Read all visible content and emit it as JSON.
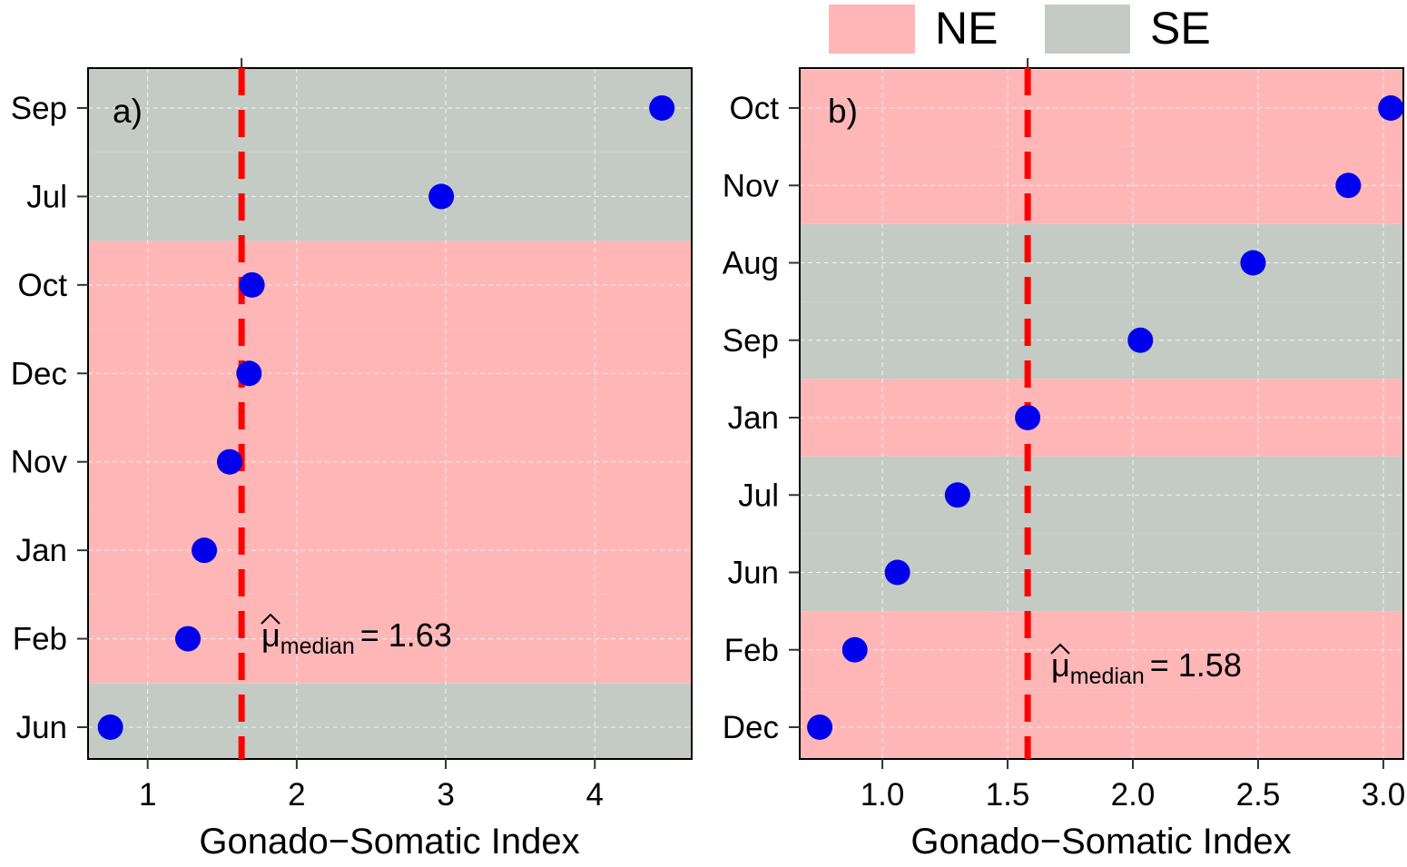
{
  "legend": {
    "items": [
      {
        "label": "NE",
        "color": "#ffb6b7"
      },
      {
        "label": "SE",
        "color": "#c4cbc4"
      }
    ]
  },
  "colors": {
    "point": "#0000ee",
    "median_line": "#ff0000",
    "grid": "#f2f2f2"
  },
  "chart_data": [
    {
      "type": "scatter",
      "panel_label": "a)",
      "xlabel": "Gonado−Somatic Index",
      "xlim": [
        0.6,
        4.65
      ],
      "xticks": [
        1,
        2,
        3,
        4
      ],
      "xtick_labels": [
        "1",
        "2",
        "3",
        "4"
      ],
      "categories": [
        "Jun",
        "Feb",
        "Jan",
        "Nov",
        "Dec",
        "Oct",
        "Jul",
        "Sep"
      ],
      "values": [
        0.75,
        1.27,
        1.38,
        1.55,
        1.68,
        1.7,
        2.97,
        4.45
      ],
      "regions": [
        "SE",
        "NE",
        "NE",
        "NE",
        "NE",
        "NE",
        "SE",
        "SE"
      ],
      "median": 1.63,
      "median_label": {
        "mu": "μ",
        "sub": "median",
        "eq": "= 1.63"
      },
      "grid": true
    },
    {
      "type": "scatter",
      "panel_label": "b)",
      "xlabel": "Gonado−Somatic Index",
      "xlim": [
        0.67,
        3.08
      ],
      "xticks": [
        1.0,
        1.5,
        2.0,
        2.5,
        3.0
      ],
      "xtick_labels": [
        "1.0",
        "1.5",
        "2.0",
        "2.5",
        "3.0"
      ],
      "categories": [
        "Dec",
        "Feb",
        "Jun",
        "Jul",
        "Jan",
        "Sep",
        "Aug",
        "Nov",
        "Oct"
      ],
      "values": [
        0.75,
        0.89,
        1.06,
        1.3,
        1.58,
        2.03,
        2.48,
        2.86,
        3.03
      ],
      "regions": [
        "NE",
        "NE",
        "SE",
        "SE",
        "NE",
        "SE",
        "SE",
        "NE",
        "NE"
      ],
      "median": 1.58,
      "median_label": {
        "mu": "μ",
        "sub": "median",
        "eq": "= 1.58"
      },
      "grid": true
    }
  ]
}
